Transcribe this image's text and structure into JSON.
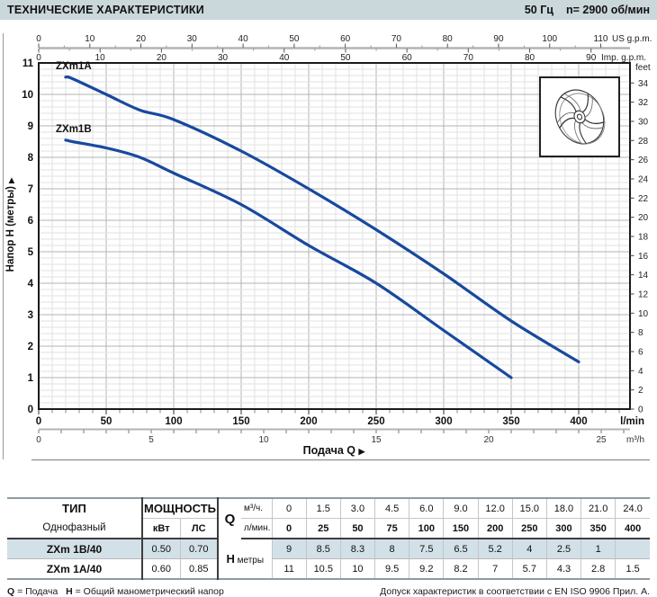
{
  "header": {
    "title": "ТЕХНИЧЕСКИЕ ХАРАКТЕРИСТИКИ",
    "frequency": "50 Гц",
    "speed": "n= 2900  об/мин"
  },
  "colors": {
    "header_bg": "#cad7db",
    "curve": "#17499e",
    "grid_minor": "#e2e2e2",
    "grid_major": "#b3b3b3",
    "frame": "#1a1a1a",
    "axis_gray": "#b3b3b3",
    "highlight_row": "#d2e0e7"
  },
  "chart_data": {
    "type": "line",
    "xlabel": "Подача Q",
    "ylabel": "Напор H (метры)",
    "x_axes": {
      "us_gpm": {
        "unit": "US g.p.m.",
        "min": 0,
        "max": 110,
        "label_step": 10,
        "tick_step": 5,
        "lmin_per_unit": 3.785
      },
      "imp_gpm": {
        "unit": "Imp. g.p.m.",
        "min": 0,
        "max": 90,
        "label_step": 10,
        "tick_step": 5,
        "lmin_per_unit": 4.546
      },
      "lmin": {
        "unit": "l/min",
        "min": 0,
        "max": 400,
        "label_step": 50,
        "tick_step": 10,
        "lmin_per_unit": 1
      },
      "m3h": {
        "unit": "m³/h",
        "min": 0,
        "max": 25,
        "label_step": 5,
        "tick_step": 1,
        "lmin_per_unit": 16.667
      }
    },
    "y_axes": {
      "meters": {
        "min": 0,
        "max": 11,
        "label_step": 1,
        "minor_step": 0.2
      },
      "feet": {
        "unit": "feet",
        "min": 0,
        "max": 34,
        "label_step": 2,
        "m_per_unit": 0.3048
      }
    },
    "series": [
      {
        "name": "ZXm1A",
        "points": [
          [
            20,
            10.55
          ],
          [
            25,
            10.5
          ],
          [
            50,
            10
          ],
          [
            75,
            9.5
          ],
          [
            100,
            9.2
          ],
          [
            150,
            8.2
          ],
          [
            200,
            7
          ],
          [
            250,
            5.7
          ],
          [
            300,
            4.3
          ],
          [
            350,
            2.8
          ],
          [
            400,
            1.5
          ]
        ]
      },
      {
        "name": "ZXm1B",
        "points": [
          [
            20,
            8.55
          ],
          [
            25,
            8.5
          ],
          [
            50,
            8.3
          ],
          [
            75,
            8
          ],
          [
            100,
            7.5
          ],
          [
            150,
            6.5
          ],
          [
            200,
            5.2
          ],
          [
            250,
            4
          ],
          [
            300,
            2.5
          ],
          [
            350,
            1
          ]
        ]
      }
    ],
    "grid": true,
    "legend_position": "curve-labels-top-left"
  },
  "table": {
    "type_header": "ТИП",
    "type_sub": "Однофазный",
    "power_header": "МОЩНОСТЬ",
    "power_units": [
      "кВт",
      "ЛС"
    ],
    "q_label": "Q",
    "q_rows": [
      {
        "unit": "м³/ч.",
        "bold": false,
        "values": [
          "0",
          "1.5",
          "3.0",
          "4.5",
          "6.0",
          "9.0",
          "12.0",
          "15.0",
          "18.0",
          "21.0",
          "24.0"
        ]
      },
      {
        "unit": "л/мин.",
        "bold": true,
        "values": [
          "0",
          "25",
          "50",
          "75",
          "100",
          "150",
          "200",
          "250",
          "300",
          "350",
          "400"
        ]
      }
    ],
    "h_label": "H",
    "h_unit": "метры",
    "rows": [
      {
        "type": "ZXm 1B/40",
        "kw": "0.50",
        "hp": "0.70",
        "highlight": true,
        "h_values": [
          "9",
          "8.5",
          "8.3",
          "8",
          "7.5",
          "6.5",
          "5.2",
          "4",
          "2.5",
          "1",
          ""
        ]
      },
      {
        "type": "ZXm 1A/40",
        "kw": "0.60",
        "hp": "0.85",
        "highlight": false,
        "h_values": [
          "11",
          "10.5",
          "10",
          "9.5",
          "9.2",
          "8.2",
          "7",
          "5.7",
          "4.3",
          "2.8",
          "1.5"
        ]
      }
    ]
  },
  "footer": {
    "legend_q_sym": "Q",
    "legend_q_text": " = Подача",
    "legend_h_sym": "H",
    "legend_h_text": " = Общий манометрический напор",
    "tolerance": "Допуск характеристик в соответствии с EN ISO 9906 Прил. А."
  }
}
